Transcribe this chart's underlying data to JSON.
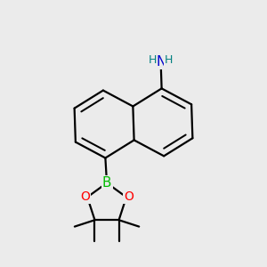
{
  "bg_color": "#ebebeb",
  "bond_color": "#000000",
  "bond_width": 1.6,
  "atom_colors": {
    "N": "#0000cc",
    "O": "#ff0000",
    "B": "#00bb00",
    "H": "#008080",
    "C": "#000000"
  },
  "font_size_atom": 10,
  "font_size_H": 9,
  "font_size_sub": 8
}
